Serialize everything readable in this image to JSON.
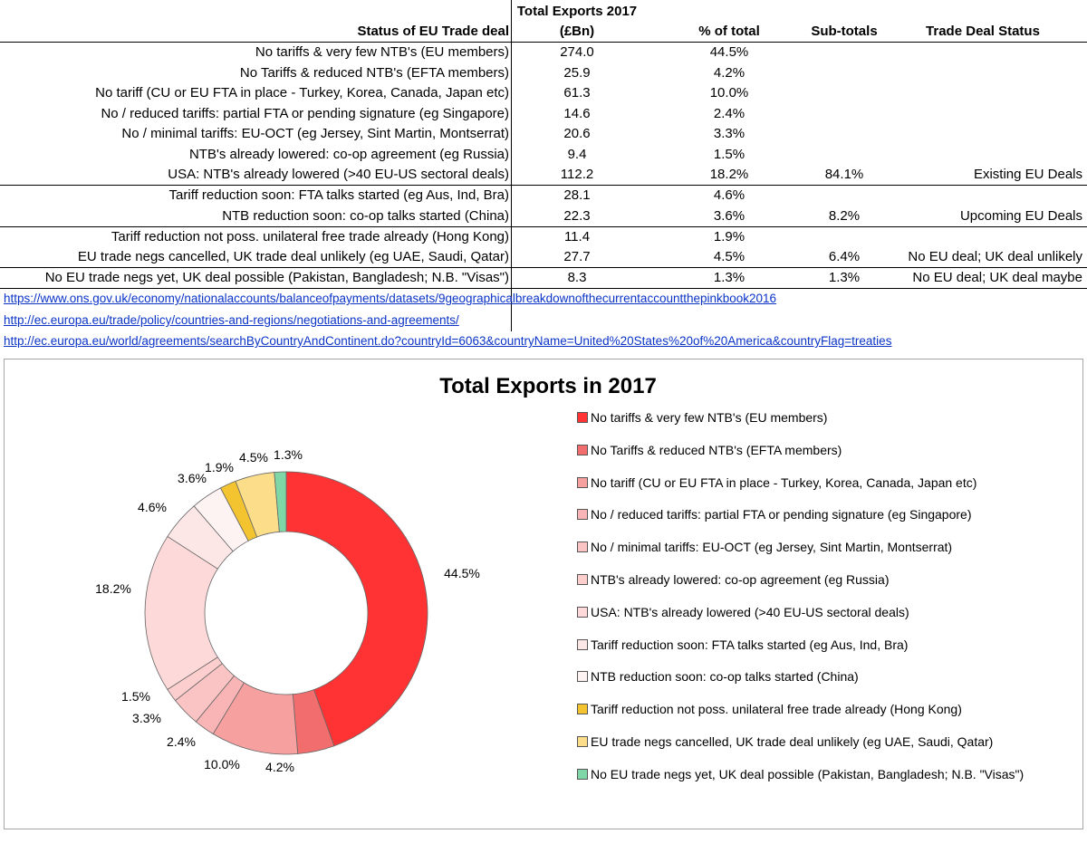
{
  "table": {
    "header_top": "Total Exports 2017",
    "headers": {
      "status": "Status of EU Trade deal",
      "exports": "(£Bn)",
      "pct": "% of total",
      "subtotals": "Sub-totals",
      "deal_status": "Trade Deal Status"
    },
    "rows": [
      {
        "label": "No tariffs & very few NTB's (EU members)",
        "exports": "274.0",
        "pct": "44.5%",
        "subtotal": "",
        "status": ""
      },
      {
        "label": "No Tariffs & reduced NTB's  (EFTA members)",
        "exports": "25.9",
        "pct": "4.2%",
        "subtotal": "",
        "status": ""
      },
      {
        "label": "No tariff (CU or EU FTA in place - Turkey, Korea, Canada, Japan etc)",
        "exports": "61.3",
        "pct": "10.0%",
        "subtotal": "",
        "status": ""
      },
      {
        "label": "No / reduced tariffs: partial FTA or pending signature (eg Singapore)",
        "exports": "14.6",
        "pct": "2.4%",
        "subtotal": "",
        "status": ""
      },
      {
        "label": "No / minimal tariffs: EU-OCT (eg Jersey, Sint Martin, Montserrat)",
        "exports": "20.6",
        "pct": "3.3%",
        "subtotal": "",
        "status": ""
      },
      {
        "label": "NTB's already lowered: co-op agreement (eg Russia)",
        "exports": "9.4",
        "pct": "1.5%",
        "subtotal": "",
        "status": ""
      },
      {
        "label": "USA: NTB's already lowered (>40 EU-US sectoral deals)",
        "exports": "112.2",
        "pct": "18.2%",
        "subtotal": "84.1%",
        "status": "Existing EU Deals"
      },
      {
        "label": "Tariff reduction soon: FTA talks started (eg Aus, Ind, Bra)",
        "exports": "28.1",
        "pct": "4.6%",
        "subtotal": "",
        "status": ""
      },
      {
        "label": "NTB reduction soon: co-op talks started (China)",
        "exports": "22.3",
        "pct": "3.6%",
        "subtotal": "8.2%",
        "status": "Upcoming EU Deals"
      },
      {
        "label": "Tariff reduction not poss. unilateral free trade already (Hong Kong)",
        "exports": "11.4",
        "pct": "1.9%",
        "subtotal": "",
        "status": ""
      },
      {
        "label": "EU trade negs cancelled, UK trade deal unlikely (eg UAE, Saudi, Qatar)",
        "exports": "27.7",
        "pct": "4.5%",
        "subtotal": "6.4%",
        "status": "No EU deal; UK deal unlikely"
      },
      {
        "label": "No EU trade negs yet, UK deal possible (Pakistan, Bangladesh; N.B. \"Visas\")",
        "exports": "8.3",
        "pct": "1.3%",
        "subtotal": "1.3%",
        "status": "No EU deal; UK deal maybe"
      }
    ]
  },
  "links": [
    "https://www.ons.gov.uk/economy/nationalaccounts/balanceofpayments/datasets/9geographicalbreakdownofthecurrentaccountthepinkbook2016",
    "http://ec.europa.eu/trade/policy/countries-and-regions/negotiations-and-agreements/",
    "http://ec.europa.eu/world/agreements/searchByCountryAndContinent.do?countryId=6063&countryName=United%20States%20of%20America&countryFlag=treaties"
  ],
  "chart_data": {
    "type": "pie",
    "variant": "donut",
    "title": "Total Exports in 2017",
    "categories": [
      "No tariffs & very few NTB's (EU members)",
      "No Tariffs & reduced NTB's  (EFTA members)",
      "No tariff (CU or EU FTA in place - Turkey, Korea, Canada, Japan etc)",
      "No / reduced tariffs: partial FTA or pending signature (eg Singapore)",
      "No / minimal tariffs: EU-OCT (eg Jersey, Sint Martin, Montserrat)",
      "NTB's already lowered: co-op agreement (eg Russia)",
      "USA: NTB's already lowered (>40 EU-US sectoral deals)",
      "Tariff reduction soon: FTA talks started (eg Aus, Ind, Bra)",
      "NTB reduction soon: co-op talks started (China)",
      "Tariff reduction not poss. unilateral free trade already (Hong Kong)",
      "EU trade negs cancelled, UK trade deal unlikely (eg UAE, Saudi, Qatar)",
      "No EU trade negs yet, UK deal possible (Pakistan, Bangladesh; N.B. \"Visas\")"
    ],
    "values": [
      274.0,
      25.9,
      61.3,
      14.6,
      20.6,
      9.4,
      112.2,
      28.1,
      22.3,
      11.4,
      27.7,
      8.3
    ],
    "data_labels": [
      "44.5%",
      "4.2%",
      "10.0%",
      "2.4%",
      "3.3%",
      "1.5%",
      "18.2%",
      "4.6%",
      "3.6%",
      "1.9%",
      "4.5%",
      "1.3%"
    ],
    "colors": [
      "#ff3333",
      "#f26d6d",
      "#f7a0a0",
      "#f9b5b5",
      "#fbc4c4",
      "#fccece",
      "#fdd9d9",
      "#fde6e6",
      "#fef3f3",
      "#f4c430",
      "#fbdd8a",
      "#7fd6a6"
    ],
    "legend_position": "right",
    "border_color": "#a6a6a6"
  }
}
